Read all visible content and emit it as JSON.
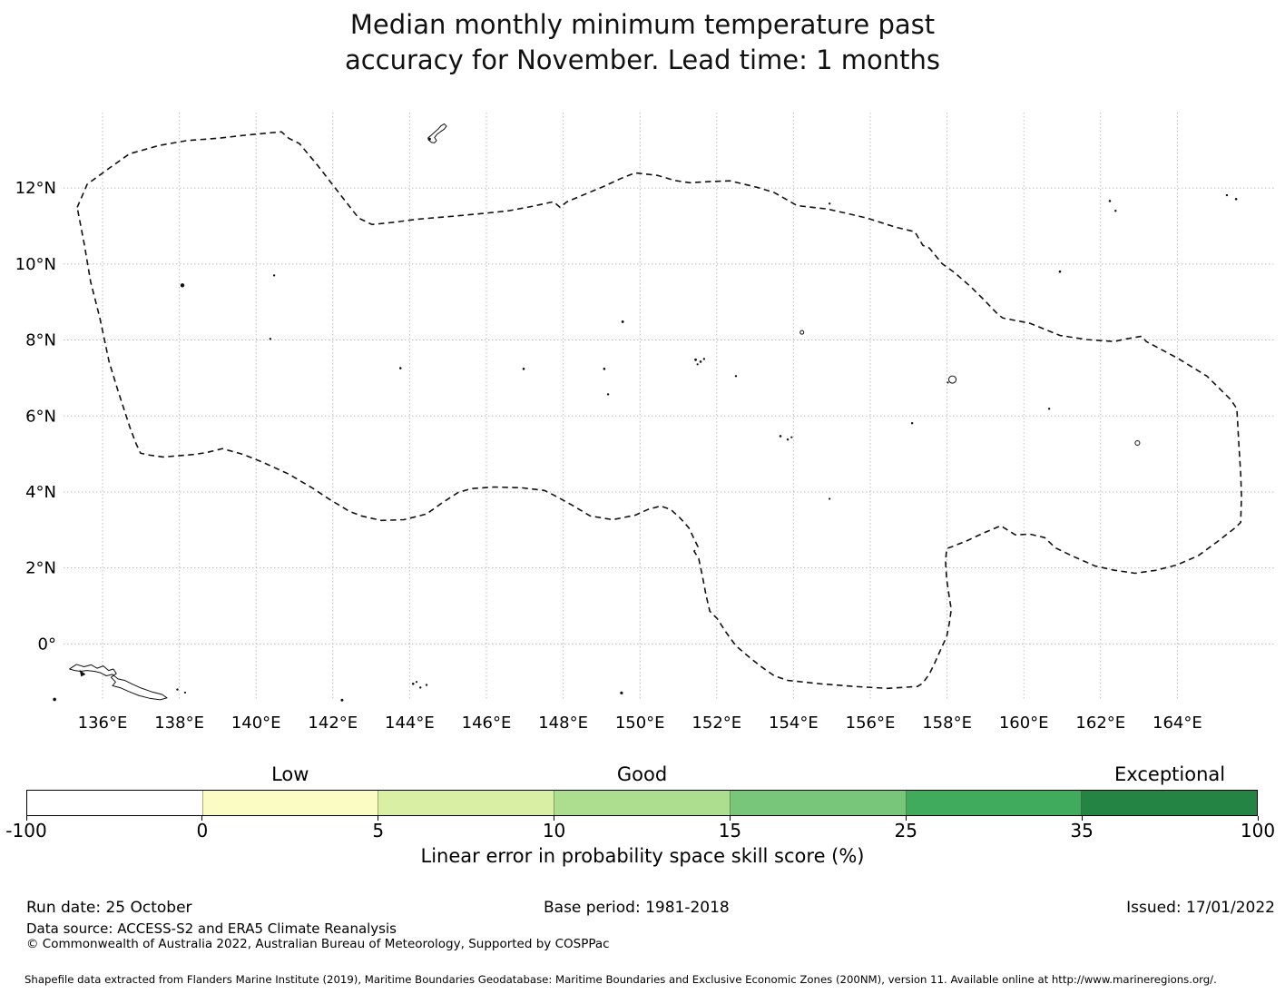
{
  "title": {
    "line1": "Median monthly minimum temperature past",
    "line2": "accuracy for November. Lead time: 1 months"
  },
  "chart_data": {
    "type": "map",
    "region": "Federated States of Micronesia EEZ (dashed maritime boundary)",
    "lon_axis": {
      "ticks": [
        136,
        138,
        140,
        142,
        144,
        146,
        148,
        150,
        152,
        154,
        156,
        158,
        160,
        162,
        164
      ],
      "labels": [
        "136°E",
        "138°E",
        "140°E",
        "142°E",
        "144°E",
        "146°E",
        "148°E",
        "150°E",
        "152°E",
        "154°E",
        "156°E",
        "158°E",
        "160°E",
        "162°E",
        "164°E"
      ],
      "range": [
        135.0,
        166.6
      ]
    },
    "lat_axis": {
      "ticks": [
        12,
        10,
        8,
        6,
        4,
        2,
        0
      ],
      "labels": [
        "12°N",
        "10°N",
        "8°N",
        "6°N",
        "4°N",
        "2°N",
        "0°"
      ],
      "range": [
        -1.5,
        14.0
      ]
    },
    "grid": true,
    "boundary_style": "black dashed",
    "eez_boundary": [
      [
        135.34,
        11.49
      ],
      [
        135.6,
        12.1
      ],
      [
        136.17,
        12.52
      ],
      [
        136.7,
        12.9
      ],
      [
        137.47,
        13.12
      ],
      [
        138.2,
        13.25
      ],
      [
        139.0,
        13.31
      ],
      [
        139.8,
        13.4
      ],
      [
        140.55,
        13.47
      ],
      [
        140.66,
        13.48
      ],
      [
        140.85,
        13.31
      ],
      [
        141.13,
        13.17
      ],
      [
        141.6,
        12.6
      ],
      [
        142.1,
        11.95
      ],
      [
        142.67,
        11.21
      ],
      [
        143.02,
        11.04
      ],
      [
        143.6,
        11.1
      ],
      [
        144.2,
        11.18
      ],
      [
        145.15,
        11.26
      ],
      [
        145.9,
        11.33
      ],
      [
        146.57,
        11.4
      ],
      [
        147.2,
        11.52
      ],
      [
        147.75,
        11.64
      ],
      [
        147.92,
        11.49
      ],
      [
        148.1,
        11.64
      ],
      [
        148.6,
        11.85
      ],
      [
        149.05,
        12.04
      ],
      [
        149.5,
        12.25
      ],
      [
        149.88,
        12.4
      ],
      [
        150.47,
        12.33
      ],
      [
        150.9,
        12.2
      ],
      [
        151.3,
        12.14
      ],
      [
        151.8,
        12.17
      ],
      [
        152.34,
        12.19
      ],
      [
        153.05,
        12.02
      ],
      [
        153.5,
        11.88
      ],
      [
        154.09,
        11.54
      ],
      [
        154.25,
        11.52
      ],
      [
        154.87,
        11.45
      ],
      [
        155.4,
        11.33
      ],
      [
        155.91,
        11.21
      ],
      [
        156.66,
        10.97
      ],
      [
        157.16,
        10.85
      ],
      [
        157.37,
        10.49
      ],
      [
        157.54,
        10.42
      ],
      [
        157.87,
        10.01
      ],
      [
        158.2,
        9.77
      ],
      [
        158.63,
        9.39
      ],
      [
        158.96,
        9.06
      ],
      [
        159.33,
        8.67
      ],
      [
        159.45,
        8.58
      ],
      [
        160.16,
        8.44
      ],
      [
        160.94,
        8.12
      ],
      [
        161.65,
        8.01
      ],
      [
        162.36,
        7.96
      ],
      [
        162.57,
        8.01
      ],
      [
        163.07,
        8.1
      ],
      [
        163.19,
        7.96
      ],
      [
        163.99,
        7.53
      ],
      [
        164.77,
        7.05
      ],
      [
        165.39,
        6.43
      ],
      [
        165.55,
        6.19
      ],
      [
        165.6,
        5.28
      ],
      [
        165.65,
        4.47
      ],
      [
        165.67,
        3.9
      ],
      [
        165.65,
        3.2
      ],
      [
        165.51,
        3.06
      ],
      [
        165.08,
        2.72
      ],
      [
        164.54,
        2.32
      ],
      [
        163.99,
        2.08
      ],
      [
        163.45,
        1.94
      ],
      [
        162.9,
        1.86
      ],
      [
        162.36,
        1.94
      ],
      [
        161.86,
        2.05
      ],
      [
        161.25,
        2.32
      ],
      [
        160.82,
        2.53
      ],
      [
        160.54,
        2.8
      ],
      [
        160.16,
        2.89
      ],
      [
        159.78,
        2.87
      ],
      [
        159.4,
        3.11
      ],
      [
        158.95,
        2.92
      ],
      [
        158.53,
        2.72
      ],
      [
        158.13,
        2.56
      ],
      [
        157.99,
        2.51
      ],
      [
        157.96,
        2.17
      ],
      [
        157.99,
        1.7
      ],
      [
        158.06,
        1.22
      ],
      [
        158.11,
        0.91
      ],
      [
        158.06,
        0.55
      ],
      [
        157.99,
        0.19
      ],
      [
        157.87,
        -0.07
      ],
      [
        157.68,
        -0.5
      ],
      [
        157.54,
        -0.79
      ],
      [
        157.37,
        -1.03
      ],
      [
        157.23,
        -1.12
      ],
      [
        156.45,
        -1.17
      ],
      [
        155.58,
        -1.12
      ],
      [
        154.7,
        -1.05
      ],
      [
        154.04,
        -0.98
      ],
      [
        153.85,
        -0.96
      ],
      [
        153.5,
        -0.84
      ],
      [
        153.16,
        -0.6
      ],
      [
        152.86,
        -0.36
      ],
      [
        152.5,
        -0.05
      ],
      [
        152.24,
        0.31
      ],
      [
        152.01,
        0.67
      ],
      [
        151.82,
        0.86
      ],
      [
        151.72,
        1.29
      ],
      [
        151.63,
        1.77
      ],
      [
        151.53,
        2.25
      ],
      [
        151.41,
        2.44
      ],
      [
        151.51,
        2.56
      ],
      [
        151.27,
        3.06
      ],
      [
        151.04,
        3.32
      ],
      [
        150.8,
        3.54
      ],
      [
        150.54,
        3.63
      ],
      [
        150.21,
        3.54
      ],
      [
        149.88,
        3.39
      ],
      [
        149.29,
        3.27
      ],
      [
        148.7,
        3.37
      ],
      [
        148.22,
        3.66
      ],
      [
        147.75,
        3.92
      ],
      [
        147.51,
        4.04
      ],
      [
        146.92,
        4.11
      ],
      [
        146.21,
        4.13
      ],
      [
        145.62,
        4.09
      ],
      [
        145.27,
        3.99
      ],
      [
        144.87,
        3.73
      ],
      [
        144.44,
        3.42
      ],
      [
        143.85,
        3.27
      ],
      [
        143.26,
        3.25
      ],
      [
        142.74,
        3.37
      ],
      [
        142.43,
        3.49
      ],
      [
        141.89,
        3.82
      ],
      [
        141.49,
        4.09
      ],
      [
        140.85,
        4.47
      ],
      [
        140.18,
        4.78
      ],
      [
        139.66,
        4.99
      ],
      [
        139.12,
        5.14
      ],
      [
        138.72,
        5.04
      ],
      [
        138.41,
        4.99
      ],
      [
        137.94,
        4.95
      ],
      [
        137.58,
        4.92
      ],
      [
        137.23,
        4.97
      ],
      [
        136.99,
        5.02
      ],
      [
        136.87,
        5.28
      ],
      [
        136.71,
        5.71
      ],
      [
        136.4,
        6.67
      ],
      [
        136.17,
        7.43
      ],
      [
        135.93,
        8.58
      ],
      [
        135.69,
        9.53
      ],
      [
        135.53,
        10.49
      ],
      [
        135.34,
        11.49
      ]
    ],
    "island_outlines": [
      {
        "name": "guam",
        "points": [
          [
            144.49,
            13.27
          ],
          [
            144.57,
            13.2
          ],
          [
            144.65,
            13.19
          ],
          [
            144.7,
            13.25
          ],
          [
            144.65,
            13.33
          ],
          [
            144.71,
            13.41
          ],
          [
            144.8,
            13.48
          ],
          [
            144.9,
            13.55
          ],
          [
            144.96,
            13.63
          ],
          [
            144.9,
            13.69
          ],
          [
            144.82,
            13.64
          ],
          [
            144.74,
            13.55
          ],
          [
            144.64,
            13.46
          ],
          [
            144.54,
            13.37
          ],
          [
            144.48,
            13.32
          ]
        ]
      },
      {
        "name": "biak-yapen-coast",
        "points": [
          [
            135.14,
            -0.66
          ],
          [
            135.32,
            -0.54
          ],
          [
            135.52,
            -0.6
          ],
          [
            135.7,
            -0.55
          ],
          [
            135.86,
            -0.64
          ],
          [
            136.02,
            -0.58
          ],
          [
            136.16,
            -0.7
          ],
          [
            136.28,
            -0.66
          ],
          [
            136.36,
            -0.78
          ],
          [
            136.22,
            -0.88
          ],
          [
            136.34,
            -1.0
          ],
          [
            136.26,
            -1.1
          ],
          [
            136.48,
            -1.16
          ],
          [
            136.7,
            -1.26
          ],
          [
            136.95,
            -1.36
          ],
          [
            137.22,
            -1.43
          ],
          [
            137.5,
            -1.47
          ],
          [
            137.68,
            -1.42
          ],
          [
            137.55,
            -1.33
          ],
          [
            137.28,
            -1.26
          ],
          [
            137.0,
            -1.16
          ],
          [
            136.76,
            -1.05
          ],
          [
            136.58,
            -0.96
          ],
          [
            136.4,
            -0.92
          ],
          [
            136.26,
            -0.8
          ],
          [
            136.1,
            -0.84
          ],
          [
            135.95,
            -0.76
          ],
          [
            135.78,
            -0.72
          ],
          [
            135.6,
            -0.7
          ],
          [
            135.42,
            -0.72
          ],
          [
            135.28,
            -0.7
          ]
        ]
      }
    ],
    "island_filled": [
      {
        "name": "biak-dark-wedge",
        "points": [
          [
            135.4,
            -0.68
          ],
          [
            135.56,
            -0.8
          ],
          [
            135.44,
            -0.86
          ]
        ]
      }
    ],
    "island_rings": [
      {
        "name": "pohnpei",
        "lonlat": [
          158.14,
          6.96
        ],
        "r": 4
      },
      {
        "name": "oroluk",
        "lonlat": [
          154.22,
          8.2
        ],
        "r": 2
      },
      {
        "name": "kosrae",
        "lonlat": [
          162.96,
          5.29
        ],
        "r": 2.5
      }
    ],
    "island_dots": [
      [
        138.08,
        9.44,
        2.2
      ],
      [
        140.47,
        9.7,
        1.2
      ],
      [
        140.37,
        8.03,
        1.2
      ],
      [
        143.76,
        7.26,
        1.3
      ],
      [
        146.97,
        7.24,
        1.3
      ],
      [
        149.07,
        7.24,
        1.3
      ],
      [
        149.55,
        8.48,
        1.4
      ],
      [
        149.17,
        6.57,
        1.2
      ],
      [
        152.5,
        7.05,
        1.2
      ],
      [
        151.45,
        7.48,
        1.4
      ],
      [
        151.58,
        7.43,
        1.3
      ],
      [
        151.67,
        7.5,
        1.2
      ],
      [
        151.5,
        7.36,
        1.1
      ],
      [
        154.94,
        11.59,
        1.2
      ],
      [
        162.24,
        11.66,
        1.3
      ],
      [
        162.39,
        11.4,
        1.2
      ],
      [
        165.29,
        11.81,
        1.2
      ],
      [
        165.53,
        11.71,
        1.3
      ],
      [
        160.94,
        9.8,
        1.3
      ],
      [
        160.66,
        6.19,
        1.2
      ],
      [
        153.66,
        5.47,
        1.3
      ],
      [
        153.85,
        5.38,
        1.2
      ],
      [
        153.95,
        5.44,
        1.1
      ],
      [
        157.09,
        5.81,
        1.2
      ],
      [
        154.94,
        3.82,
        1.1
      ],
      [
        144.09,
        -1.05,
        1.3
      ],
      [
        144.28,
        -1.15,
        1.2
      ],
      [
        144.44,
        -1.08,
        1.2
      ],
      [
        144.18,
        -1.0,
        1.1
      ],
      [
        149.52,
        -1.29,
        1.6
      ],
      [
        134.75,
        -1.46,
        1.8
      ],
      [
        142.24,
        -1.48,
        1.5
      ],
      [
        137.95,
        -1.2,
        1.2
      ],
      [
        138.15,
        -1.28,
        1.1
      ],
      [
        158.02,
        6.88,
        1.1
      ],
      [
        144.52,
        13.29,
        1.5
      ]
    ],
    "colorbar": {
      "axis_label": "Linear error in probability space skill score (%)",
      "bounds": [
        -100,
        0,
        5,
        10,
        15,
        25,
        35,
        100
      ],
      "bound_labels": [
        "-100",
        "0",
        "5",
        "10",
        "15",
        "25",
        "35",
        "100"
      ],
      "segments": [
        {
          "color": "#ffffff",
          "label": ""
        },
        {
          "color": "#fbfcc4",
          "label": "Low"
        },
        {
          "color": "#d9efa3",
          "label": ""
        },
        {
          "color": "#addd8e",
          "label": "Good"
        },
        {
          "color": "#78c679",
          "label": ""
        },
        {
          "color": "#41ab5d",
          "label": ""
        },
        {
          "color": "#238443",
          "label": "Exceptional"
        }
      ]
    }
  },
  "footer": {
    "run_date": "Run date: 25 October",
    "base_period": "Base period: 1981-2018",
    "issued": "Issued: 17/01/2022",
    "data_source": "Data source: ACCESS-S2 and ERA5 Climate Reanalysis",
    "copyright": "© Commonwealth of Australia 2022, Australian Bureau of Meteorology, Supported by COSPPac",
    "shapefile_note": "Shapefile data extracted from Flanders Marine Institute (2019), Maritime Boundaries Geodatabase: Maritime Boundaries and Exclusive Economic Zones (200NM), version 11. Available online at http://www.marineregions.org/."
  }
}
